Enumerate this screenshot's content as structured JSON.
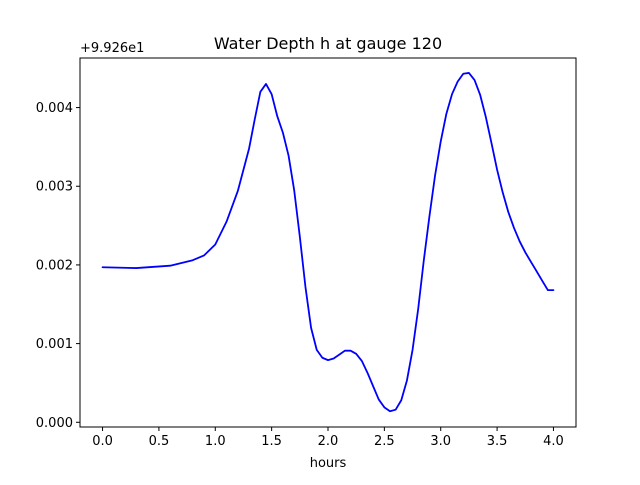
{
  "chart_data": {
    "type": "line",
    "title": "Water Depth h at gauge 120",
    "xlabel": "hours",
    "ylabel": "",
    "y_offset_label": "+9.926e1",
    "xlim": [
      -0.2,
      4.2
    ],
    "ylim": [
      -6e-05,
      0.00463
    ],
    "x_ticks": [
      0.0,
      0.5,
      1.0,
      1.5,
      2.0,
      2.5,
      3.0,
      3.5,
      4.0
    ],
    "x_tick_labels": [
      "0.0",
      "0.5",
      "1.0",
      "1.5",
      "2.0",
      "2.5",
      "3.0",
      "3.5",
      "4.0"
    ],
    "y_ticks": [
      0.0,
      0.001,
      0.002,
      0.003,
      0.004
    ],
    "y_tick_labels": [
      "0.000",
      "0.001",
      "0.002",
      "0.003",
      "0.004"
    ],
    "grid": false,
    "legend": "none",
    "series": [
      {
        "color": "#0000ff",
        "x": [
          0.0,
          0.3,
          0.6,
          0.8,
          0.9,
          1.0,
          1.1,
          1.2,
          1.3,
          1.35,
          1.4,
          1.45,
          1.5,
          1.55,
          1.6,
          1.65,
          1.7,
          1.75,
          1.8,
          1.85,
          1.9,
          1.95,
          2.0,
          2.05,
          2.1,
          2.15,
          2.2,
          2.25,
          2.3,
          2.35,
          2.4,
          2.45,
          2.5,
          2.55,
          2.6,
          2.65,
          2.7,
          2.75,
          2.8,
          2.85,
          2.9,
          2.95,
          3.0,
          3.05,
          3.1,
          3.15,
          3.2,
          3.25,
          3.3,
          3.35,
          3.4,
          3.45,
          3.5,
          3.55,
          3.6,
          3.65,
          3.7,
          3.75,
          3.8,
          3.85,
          3.9,
          3.95,
          4.0
        ],
        "y": [
          0.00197,
          0.00196,
          0.00199,
          0.00206,
          0.00212,
          0.00226,
          0.00255,
          0.00294,
          0.00348,
          0.00385,
          0.0042,
          0.0043,
          0.00417,
          0.00389,
          0.00368,
          0.00339,
          0.00295,
          0.00236,
          0.00172,
          0.0012,
          0.00092,
          0.00082,
          0.00079,
          0.00081,
          0.00086,
          0.00091,
          0.00091,
          0.00087,
          0.00078,
          0.00063,
          0.00046,
          0.00029,
          0.00019,
          0.00014,
          0.00016,
          0.00028,
          0.00053,
          0.00092,
          0.00144,
          0.00206,
          0.00262,
          0.00314,
          0.00357,
          0.00392,
          0.00417,
          0.00433,
          0.00443,
          0.00444,
          0.00435,
          0.00416,
          0.00388,
          0.00355,
          0.00321,
          0.00292,
          0.00267,
          0.00247,
          0.0023,
          0.00216,
          0.00204,
          0.00192,
          0.0018,
          0.00168,
          0.00168
        ]
      }
    ]
  }
}
